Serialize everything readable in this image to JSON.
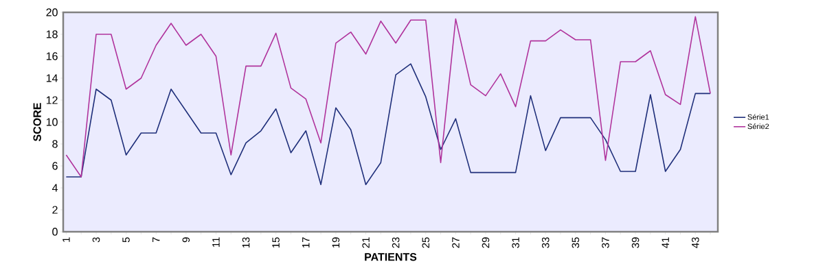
{
  "chart_data": {
    "type": "line",
    "xlabel": "PATIENTS",
    "ylabel": "SCORE",
    "categories": [
      "1",
      null,
      "3",
      null,
      "5",
      null,
      "7",
      null,
      "9",
      null,
      "11",
      null,
      "13",
      null,
      "15",
      null,
      "17",
      null,
      "19",
      null,
      "21",
      null,
      "23",
      null,
      "25",
      null,
      "27",
      null,
      "29",
      null,
      "31",
      null,
      "33",
      null,
      "35",
      null,
      "37",
      null,
      "39",
      null,
      "41",
      null,
      "43",
      null
    ],
    "series": [
      {
        "name": "Série1",
        "color": "#1f2f7a",
        "values": [
          5,
          5,
          13,
          12,
          7,
          9,
          9,
          13,
          11,
          9,
          9,
          5.2,
          8.1,
          9.2,
          11.2,
          7.2,
          9.2,
          4.3,
          11.3,
          9.3,
          4.3,
          6.3,
          14.3,
          15.3,
          12.3,
          7.5,
          10.3,
          5.4,
          5.4,
          5.4,
          5.4,
          12.4,
          7.4,
          10.4,
          10.4,
          10.4,
          8.4,
          5.5,
          5.5,
          12.5,
          5.5,
          7.5,
          12.6,
          12.6
        ]
      },
      {
        "name": "Série2",
        "color": "#b0339c",
        "values": [
          7,
          5,
          18,
          18,
          13,
          14,
          17,
          19,
          17,
          18,
          16,
          7,
          15.1,
          15.1,
          18.1,
          13.1,
          12.1,
          8.1,
          17.2,
          18.2,
          16.2,
          19.2,
          17.2,
          19.3,
          19.3,
          6.3,
          19.4,
          13.4,
          12.4,
          14.4,
          11.4,
          17.4,
          17.4,
          18.4,
          17.5,
          17.5,
          6.5,
          15.5,
          15.5,
          16.5,
          12.5,
          11.6,
          19.6,
          12.6
        ]
      }
    ],
    "ylim": [
      0,
      20
    ],
    "yticks": [
      0,
      2,
      4,
      6,
      8,
      10,
      12,
      14,
      16,
      18,
      20
    ],
    "legend": "right",
    "grid": false,
    "marker": "none",
    "line_style": "solid"
  }
}
